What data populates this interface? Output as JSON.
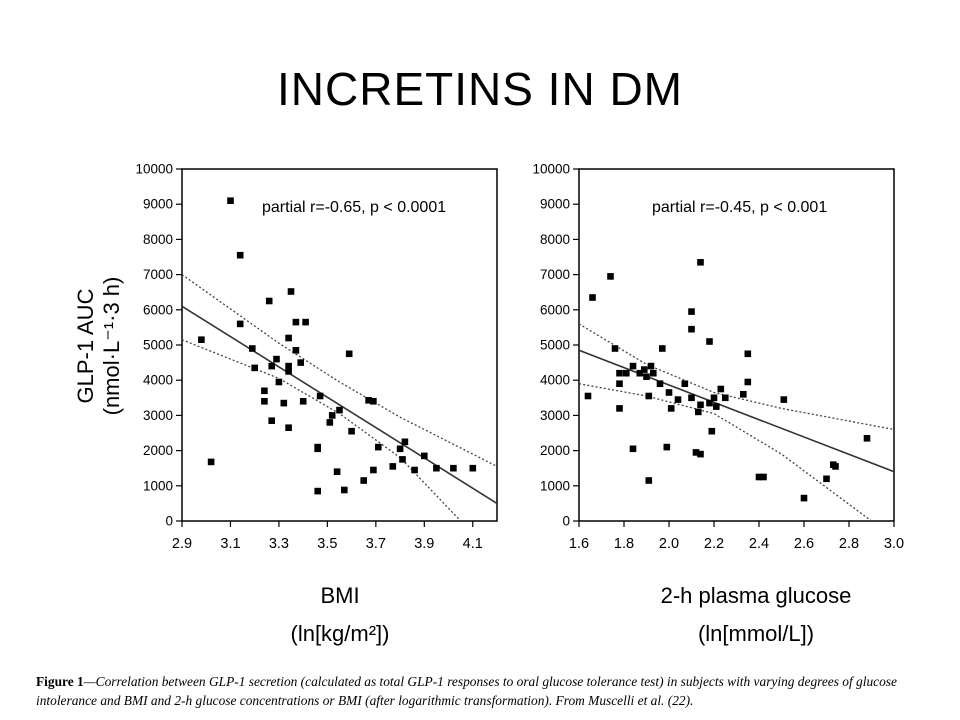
{
  "slide": {
    "title": "INCRETINS IN DM"
  },
  "shared_ylabel": {
    "line1": "GLP-1 AUC",
    "line2": "(nmol·L⁻¹·3 h)"
  },
  "caption": {
    "label": "Figure 1",
    "text": "—Correlation between GLP-1 secretion (calculated as total GLP-1 responses to oral glucose tolerance test) in subjects with varying degrees of glucose intolerance and BMI and 2-h glucose concentrations or BMI (after logarithmic transformation). From Muscelli et al. (22)."
  },
  "colors": {
    "marker": "#000000",
    "axis": "#000000",
    "fit": "#333333",
    "ci": "#444444"
  },
  "chart_data": [
    {
      "type": "scatter",
      "annotation": "partial r=-0.65, p < 0.0001",
      "xlabel": "BMI",
      "xunit": "(ln[kg/m²])",
      "xlim": [
        2.9,
        4.2
      ],
      "ylim": [
        0,
        10000
      ],
      "xticks": [
        2.9,
        3.1,
        3.3,
        3.5,
        3.7,
        3.9,
        4.1
      ],
      "xtick_labels": [
        "2.9",
        "3.1",
        "3.3",
        "3.5",
        "3.7",
        "3.9",
        "4.1"
      ],
      "yticks": [
        0,
        1000,
        2000,
        3000,
        4000,
        5000,
        6000,
        7000,
        8000,
        9000,
        10000
      ],
      "ytick_labels": [
        "0",
        "1000",
        "2000",
        "3000",
        "4000",
        "5000",
        "6000",
        "7000",
        "8000",
        "9000",
        "10000"
      ],
      "points": [
        [
          2.98,
          5150
        ],
        [
          3.02,
          1680
        ],
        [
          3.1,
          9100
        ],
        [
          3.14,
          7550
        ],
        [
          3.14,
          5600
        ],
        [
          3.19,
          4900
        ],
        [
          3.2,
          4350
        ],
        [
          3.24,
          3700
        ],
        [
          3.24,
          3400
        ],
        [
          3.26,
          6250
        ],
        [
          3.27,
          2850
        ],
        [
          3.27,
          4400
        ],
        [
          3.29,
          4600
        ],
        [
          3.3,
          3950
        ],
        [
          3.32,
          3350
        ],
        [
          3.34,
          2650
        ],
        [
          3.34,
          5200
        ],
        [
          3.34,
          4400
        ],
        [
          3.34,
          4250
        ],
        [
          3.35,
          6520
        ],
        [
          3.37,
          5650
        ],
        [
          3.37,
          4850
        ],
        [
          3.39,
          4500
        ],
        [
          3.4,
          3400
        ],
        [
          3.41,
          5650
        ],
        [
          3.46,
          2100
        ],
        [
          3.46,
          2050
        ],
        [
          3.46,
          850
        ],
        [
          3.47,
          3550
        ],
        [
          3.51,
          2800
        ],
        [
          3.52,
          3000
        ],
        [
          3.54,
          1400
        ],
        [
          3.55,
          3150
        ],
        [
          3.57,
          880
        ],
        [
          3.59,
          4750
        ],
        [
          3.6,
          2550
        ],
        [
          3.65,
          1150
        ],
        [
          3.67,
          3430
        ],
        [
          3.69,
          1450
        ],
        [
          3.69,
          3400
        ],
        [
          3.71,
          2100
        ],
        [
          3.77,
          1550
        ],
        [
          3.8,
          2050
        ],
        [
          3.81,
          1750
        ],
        [
          3.82,
          2250
        ],
        [
          3.86,
          1450
        ],
        [
          3.9,
          1850
        ],
        [
          3.95,
          1500
        ],
        [
          4.02,
          1500
        ],
        [
          4.1,
          1500
        ]
      ],
      "fit": {
        "x": [
          2.9,
          4.2
        ],
        "y": [
          6100,
          500
        ]
      },
      "ci_upper": {
        "x": [
          2.9,
          3.3,
          3.55,
          3.8,
          4.2
        ],
        "y": [
          7000,
          5050,
          3950,
          2950,
          1550
        ]
      },
      "ci_lower": {
        "x": [
          2.9,
          3.3,
          3.55,
          3.8,
          4.05
        ],
        "y": [
          5150,
          4050,
          3050,
          1800,
          0
        ]
      }
    },
    {
      "type": "scatter",
      "annotation": "partial r=-0.45, p < 0.001",
      "xlabel": "2-h plasma glucose",
      "xunit": "(ln[mmol/L])",
      "xlim": [
        1.6,
        3.0
      ],
      "ylim": [
        0,
        10000
      ],
      "xticks": [
        1.6,
        1.8,
        2.0,
        2.2,
        2.4,
        2.6,
        2.8,
        3.0
      ],
      "xtick_labels": [
        "1.6",
        "1.8",
        "2.0",
        "2.2",
        "2.4",
        "2.6",
        "2.8",
        "3.0"
      ],
      "yticks": [
        0,
        1000,
        2000,
        3000,
        4000,
        5000,
        6000,
        7000,
        8000,
        9000,
        10000
      ],
      "ytick_labels": [
        "0",
        "1000",
        "2000",
        "3000",
        "4000",
        "5000",
        "6000",
        "7000",
        "8000",
        "9000",
        "10000"
      ],
      "points": [
        [
          1.64,
          3550
        ],
        [
          1.66,
          6350
        ],
        [
          1.74,
          6950
        ],
        [
          1.76,
          4900
        ],
        [
          1.78,
          4200
        ],
        [
          1.78,
          3900
        ],
        [
          1.78,
          3200
        ],
        [
          1.81,
          4200
        ],
        [
          1.84,
          2050
        ],
        [
          1.84,
          4400
        ],
        [
          1.87,
          4200
        ],
        [
          1.89,
          4300
        ],
        [
          1.9,
          4100
        ],
        [
          1.91,
          1150
        ],
        [
          1.91,
          3550
        ],
        [
          1.92,
          4400
        ],
        [
          1.93,
          4200
        ],
        [
          1.96,
          3900
        ],
        [
          1.97,
          4900
        ],
        [
          1.99,
          2100
        ],
        [
          2.0,
          3650
        ],
        [
          2.01,
          3200
        ],
        [
          2.04,
          3450
        ],
        [
          2.07,
          3900
        ],
        [
          2.1,
          5950
        ],
        [
          2.1,
          5450
        ],
        [
          2.1,
          3500
        ],
        [
          2.12,
          1950
        ],
        [
          2.13,
          3100
        ],
        [
          2.14,
          3300
        ],
        [
          2.14,
          1900
        ],
        [
          2.14,
          7350
        ],
        [
          2.18,
          5100
        ],
        [
          2.18,
          3350
        ],
        [
          2.19,
          2550
        ],
        [
          2.2,
          3500
        ],
        [
          2.21,
          3250
        ],
        [
          2.23,
          3750
        ],
        [
          2.25,
          3500
        ],
        [
          2.33,
          3600
        ],
        [
          2.35,
          4750
        ],
        [
          2.35,
          3950
        ],
        [
          2.4,
          1250
        ],
        [
          2.42,
          1250
        ],
        [
          2.51,
          3450
        ],
        [
          2.6,
          650
        ],
        [
          2.7,
          1200
        ],
        [
          2.73,
          1600
        ],
        [
          2.74,
          1550
        ],
        [
          2.88,
          2350
        ]
      ],
      "fit": {
        "x": [
          1.6,
          3.0
        ],
        "y": [
          4850,
          1400
        ]
      },
      "ci_upper": {
        "x": [
          1.6,
          1.9,
          2.2,
          2.5,
          3.0
        ],
        "y": [
          5600,
          4450,
          3650,
          3200,
          2600
        ]
      },
      "ci_lower": {
        "x": [
          1.6,
          1.9,
          2.2,
          2.5,
          2.9
        ],
        "y": [
          3900,
          3550,
          3050,
          1900,
          0
        ]
      }
    }
  ]
}
